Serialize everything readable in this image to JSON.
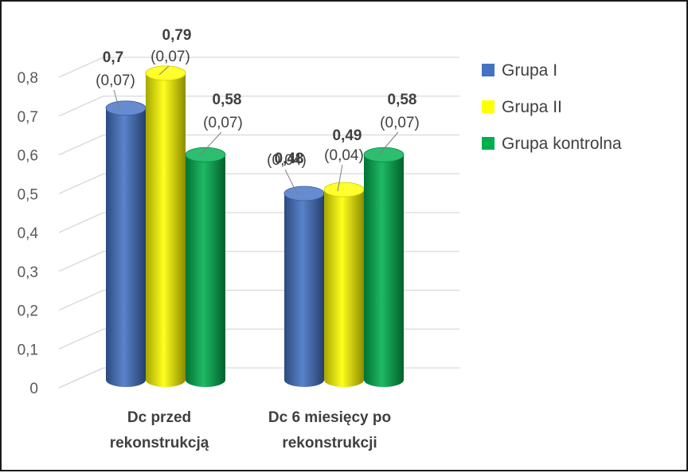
{
  "chart_data": {
    "type": "bar",
    "title": "",
    "xlabel": "",
    "ylabel": "",
    "ylim": [
      0,
      0.8
    ],
    "yticks": [
      "0",
      "0,1",
      "0,2",
      "0,3",
      "0,4",
      "0,5",
      "0,6",
      "0,7",
      "0,8"
    ],
    "grid": true,
    "legend_position": "right",
    "categories": [
      [
        "Dc przed",
        "rekonstrukcją"
      ],
      [
        "Dc 6 miesięcy po",
        "rekonstrukcji"
      ]
    ],
    "series": [
      {
        "name": "Grupa I",
        "color": "#4472C4",
        "values": [
          0.7,
          0.48
        ],
        "value_labels": [
          "0,7",
          "0,48"
        ],
        "sd_labels": [
          "(0,07)",
          "(0,04)"
        ]
      },
      {
        "name": "Grupa II",
        "color": "#FFFF00",
        "values": [
          0.79,
          0.49
        ],
        "value_labels": [
          "0,79",
          "0,49"
        ],
        "sd_labels": [
          "(0,07)",
          "(0,04)"
        ]
      },
      {
        "name": "Grupa kontrolna",
        "color": "#00B050",
        "values": [
          0.58,
          0.58
        ],
        "value_labels": [
          "0,58",
          "0,58"
        ],
        "sd_labels": [
          "(0,07)",
          "(0,07)"
        ]
      }
    ]
  }
}
